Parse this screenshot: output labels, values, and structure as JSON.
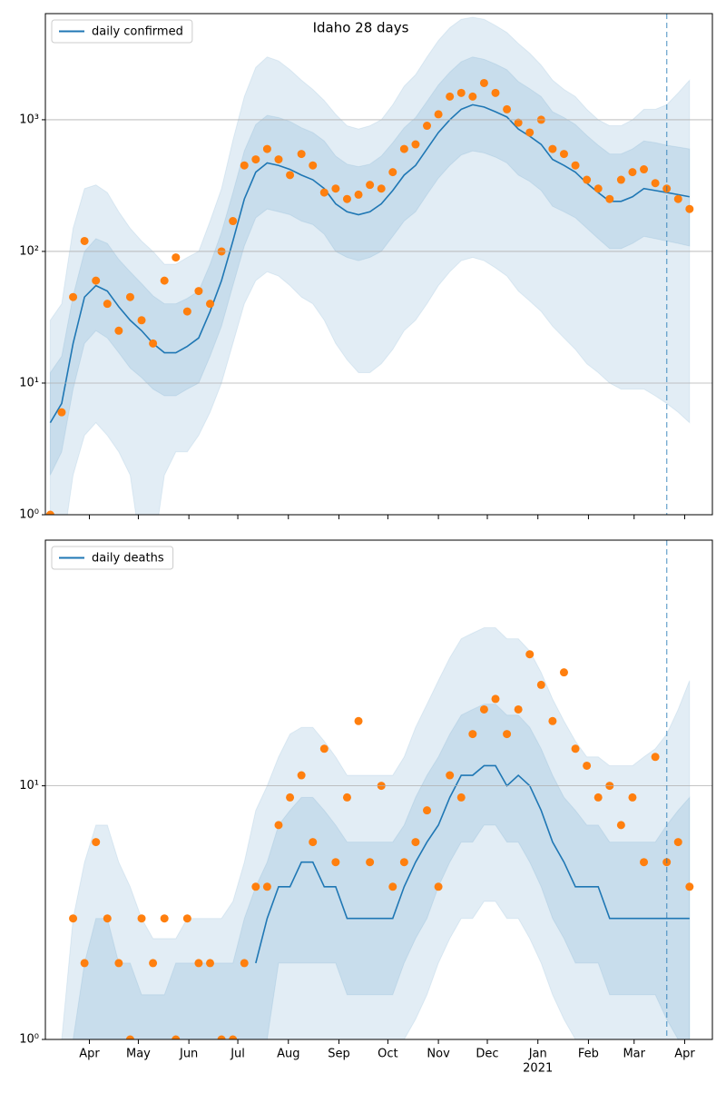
{
  "chart_data": [
    {
      "type": "line",
      "title": "Idaho 28 days",
      "log_y": true,
      "grid": "y",
      "legend": "upper left",
      "xlim": [
        4,
        413
      ],
      "ylim": [
        1,
        6400
      ],
      "yticks": [
        {
          "value": 1,
          "label": "10⁰"
        },
        {
          "value": 10,
          "label": "10¹"
        },
        {
          "value": 100,
          "label": "10²"
        },
        {
          "value": 1000,
          "label": "10³"
        }
      ],
      "vline": 385,
      "x": [
        7,
        14,
        21,
        28,
        35,
        42,
        49,
        56,
        63,
        70,
        77,
        84,
        91,
        98,
        105,
        112,
        119,
        126,
        133,
        140,
        147,
        154,
        161,
        168,
        175,
        182,
        189,
        196,
        203,
        210,
        217,
        224,
        231,
        238,
        245,
        252,
        259,
        266,
        273,
        280,
        287,
        294,
        301,
        308,
        315,
        322,
        329,
        336,
        343,
        350,
        357,
        364,
        371,
        378,
        385,
        392,
        399
      ],
      "series": [
        {
          "name": "daily confirmed",
          "color": "#1f77b4",
          "values": [
            5,
            7,
            20,
            45,
            55,
            50,
            38,
            30,
            25,
            20,
            17,
            17,
            19,
            22,
            35,
            60,
            120,
            250,
            400,
            470,
            450,
            420,
            380,
            350,
            300,
            230,
            200,
            190,
            200,
            230,
            290,
            380,
            450,
            600,
            800,
            1000,
            1200,
            1300,
            1250,
            1150,
            1050,
            850,
            750,
            650,
            500,
            450,
            400,
            330,
            280,
            240,
            240,
            260,
            300,
            290,
            280,
            270,
            260
          ]
        }
      ],
      "scatter": {
        "color": "#ff7f0e",
        "values": [
          1,
          6,
          45,
          120,
          60,
          40,
          25,
          45,
          30,
          20,
          60,
          90,
          35,
          50,
          40,
          100,
          170,
          450,
          500,
          600,
          500,
          380,
          550,
          450,
          280,
          300,
          250,
          270,
          320,
          300,
          400,
          600,
          650,
          900,
          1100,
          1500,
          1600,
          1500,
          1900,
          1600,
          1200,
          950,
          800,
          1000,
          600,
          550,
          450,
          350,
          300,
          250,
          350,
          400,
          420,
          330,
          300,
          250,
          210
        ]
      },
      "bands": [
        {
          "color": "#1f77b4",
          "lower": [
            0.5,
            0.5,
            2,
            4,
            5,
            4,
            3,
            2,
            0.5,
            0.5,
            2,
            3,
            3,
            4,
            6,
            10,
            20,
            40,
            60,
            70,
            65,
            55,
            45,
            40,
            30,
            20,
            15,
            12,
            12,
            14,
            18,
            25,
            30,
            40,
            55,
            70,
            85,
            90,
            85,
            75,
            65,
            50,
            42,
            35,
            27,
            22,
            18,
            14,
            12,
            10,
            9,
            9,
            9,
            8,
            7,
            6,
            5
          ],
          "upper": [
            30,
            40,
            150,
            300,
            320,
            280,
            200,
            150,
            120,
            100,
            80,
            80,
            90,
            100,
            170,
            300,
            700,
            1500,
            2500,
            3000,
            2800,
            2400,
            2000,
            1700,
            1400,
            1100,
            900,
            850,
            900,
            1000,
            1300,
            1800,
            2200,
            3000,
            4000,
            5000,
            5800,
            6000,
            5800,
            5200,
            4600,
            3800,
            3200,
            2600,
            2000,
            1700,
            1500,
            1200,
            1000,
            900,
            900,
            1000,
            1200,
            1200,
            1300,
            1600,
            2000
          ]
        },
        {
          "color": "#1f77b4",
          "lower": [
            2,
            3,
            9,
            20,
            25,
            22,
            17,
            13,
            11,
            9,
            8,
            8,
            9,
            10,
            16,
            27,
            55,
            110,
            180,
            210,
            200,
            190,
            170,
            160,
            135,
            100,
            90,
            85,
            90,
            100,
            130,
            170,
            200,
            270,
            360,
            450,
            540,
            580,
            560,
            520,
            470,
            380,
            340,
            290,
            220,
            200,
            180,
            150,
            125,
            105,
            105,
            115,
            130,
            125,
            120,
            115,
            110
          ],
          "upper": [
            12,
            16,
            46,
            100,
            125,
            115,
            87,
            70,
            57,
            46,
            40,
            40,
            44,
            50,
            80,
            140,
            280,
            580,
            920,
            1080,
            1040,
            970,
            870,
            800,
            690,
            530,
            460,
            440,
            460,
            530,
            670,
            870,
            1040,
            1380,
            1840,
            2300,
            2760,
            3000,
            2880,
            2650,
            2400,
            1950,
            1720,
            1500,
            1150,
            1040,
            920,
            760,
            640,
            550,
            550,
            600,
            690,
            670,
            640,
            620,
            600
          ]
        }
      ]
    },
    {
      "type": "line",
      "log_y": true,
      "grid": "y",
      "legend": "upper left",
      "xlim": [
        4,
        413
      ],
      "ylim": [
        1,
        93
      ],
      "yticks": [
        {
          "value": 1,
          "label": "10⁰"
        },
        {
          "value": 10,
          "label": "10¹"
        }
      ],
      "xticks": [
        {
          "value": 31,
          "label": "Apr"
        },
        {
          "value": 61,
          "label": "May"
        },
        {
          "value": 92,
          "label": "Jun"
        },
        {
          "value": 122,
          "label": "Jul"
        },
        {
          "value": 153,
          "label": "Aug"
        },
        {
          "value": 184,
          "label": "Sep"
        },
        {
          "value": 214,
          "label": "Oct"
        },
        {
          "value": 245,
          "label": "Nov"
        },
        {
          "value": 275,
          "label": "Dec"
        },
        {
          "value": 306,
          "label": "Jan"
        },
        {
          "value": 337,
          "label": "Feb"
        },
        {
          "value": 365,
          "label": "Mar"
        },
        {
          "value": 396,
          "label": "Apr"
        }
      ],
      "year_label": {
        "value": 306,
        "label": "2021"
      },
      "vline": 385,
      "x": [
        7,
        14,
        21,
        28,
        35,
        42,
        49,
        56,
        63,
        70,
        77,
        84,
        91,
        98,
        105,
        112,
        119,
        126,
        133,
        140,
        147,
        154,
        161,
        168,
        175,
        182,
        189,
        196,
        203,
        210,
        217,
        224,
        231,
        238,
        245,
        252,
        259,
        266,
        273,
        280,
        287,
        294,
        301,
        308,
        315,
        322,
        329,
        336,
        343,
        350,
        357,
        364,
        371,
        378,
        385,
        392,
        399
      ],
      "series": [
        {
          "name": "daily deaths",
          "color": "#1f77b4",
          "values": [
            null,
            null,
            null,
            null,
            null,
            null,
            null,
            null,
            null,
            null,
            null,
            null,
            null,
            null,
            null,
            null,
            null,
            null,
            2,
            3,
            4,
            4,
            5,
            5,
            4,
            4,
            3,
            3,
            3,
            3,
            3,
            4,
            5,
            6,
            7,
            9,
            11,
            11,
            12,
            12,
            10,
            11,
            10,
            8,
            6,
            5,
            4,
            4,
            4,
            3,
            3,
            3,
            3,
            3,
            3,
            3,
            3
          ]
        }
      ],
      "scatter": {
        "color": "#ff7f0e",
        "values": [
          null,
          null,
          3,
          2,
          6,
          3,
          2,
          1,
          3,
          2,
          3,
          1,
          3,
          2,
          2,
          1,
          1,
          2,
          4,
          4,
          7,
          9,
          11,
          6,
          14,
          5,
          9,
          18,
          5,
          10,
          4,
          5,
          6,
          8,
          4,
          11,
          9,
          16,
          20,
          22,
          16,
          20,
          33,
          25,
          18,
          28,
          14,
          12,
          9,
          10,
          7,
          9,
          5,
          13,
          5,
          6,
          4
        ]
      },
      "bands": [
        {
          "color": "#1f77b4",
          "lower": [
            0.5,
            0.5,
            0.5,
            0.5,
            0.5,
            0.5,
            0.5,
            0.5,
            0.5,
            0.5,
            0.5,
            0.5,
            0.5,
            0.5,
            0.5,
            0.5,
            0.5,
            0.5,
            0.5,
            0.5,
            1,
            1,
            1,
            1,
            1,
            1,
            0.8,
            0.8,
            0.8,
            0.8,
            0.8,
            1,
            1.2,
            1.5,
            2,
            2.5,
            3,
            3,
            3.5,
            3.5,
            3,
            3,
            2.5,
            2,
            1.5,
            1.2,
            1,
            1,
            1,
            0.8,
            0.8,
            0.8,
            0.7,
            0.7,
            0.6,
            0.5,
            0.5
          ],
          "upper": [
            1,
            1,
            3,
            5,
            7,
            7,
            5,
            4,
            3,
            2.5,
            2.5,
            2.5,
            3,
            3,
            3,
            3,
            3.5,
            5,
            8,
            10,
            13,
            16,
            17,
            17,
            15,
            13,
            11,
            11,
            11,
            11,
            11,
            13,
            17,
            21,
            26,
            32,
            38,
            40,
            42,
            42,
            38,
            38,
            34,
            28,
            22,
            18,
            15,
            13,
            13,
            12,
            12,
            12,
            13,
            14,
            16,
            20,
            26
          ]
        },
        {
          "color": "#1f77b4",
          "lower": [
            0.5,
            0.5,
            0.5,
            0.5,
            0.5,
            0.5,
            0.5,
            0.5,
            0.5,
            0.5,
            0.5,
            0.5,
            0.5,
            0.5,
            0.5,
            0.5,
            0.5,
            0.5,
            1,
            1,
            2,
            2,
            2,
            2,
            2,
            2,
            1.5,
            1.5,
            1.5,
            1.5,
            1.5,
            2,
            2.5,
            3,
            4,
            5,
            6,
            6,
            7,
            7,
            6,
            6,
            5,
            4,
            3,
            2.5,
            2,
            2,
            2,
            1.5,
            1.5,
            1.5,
            1.5,
            1.5,
            1.2,
            1,
            1
          ],
          "upper": [
            1,
            1,
            1,
            2,
            3,
            3,
            2,
            2,
            1.5,
            1.5,
            1.5,
            2,
            2,
            2,
            2,
            2,
            2,
            3,
            4,
            5,
            7,
            8,
            9,
            9,
            8,
            7,
            6,
            6,
            6,
            6,
            6,
            7,
            9,
            11,
            13,
            16,
            19,
            20,
            21,
            21,
            19,
            19,
            17,
            14,
            11,
            9,
            8,
            7,
            7,
            6,
            6,
            6,
            6,
            6,
            7,
            8,
            9
          ]
        }
      ]
    }
  ]
}
